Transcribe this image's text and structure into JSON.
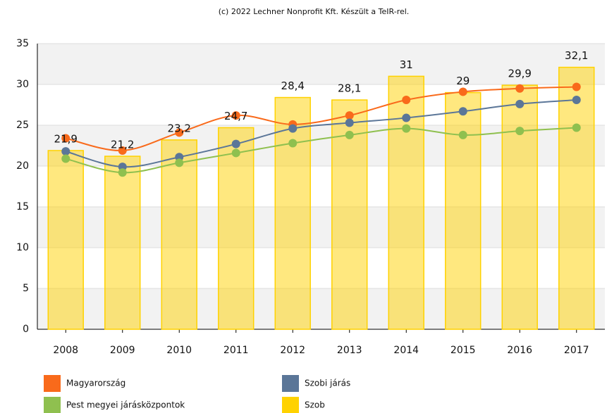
{
  "chart_data": {
    "type": "bar_line",
    "subtitle": "(c) 2022 Lechner Nonprofit Kft. Készült a TeIR-rel.",
    "categories": [
      "2008",
      "2009",
      "2010",
      "2011",
      "2012",
      "2013",
      "2014",
      "2015",
      "2016",
      "2017"
    ],
    "series": [
      {
        "name": "Magyarország",
        "type": "line",
        "color": "#f96a1b",
        "values": [
          23.4,
          21.9,
          24.1,
          26.2,
          25.1,
          26.2,
          28.1,
          29.1,
          29.5,
          29.7
        ]
      },
      {
        "name": "Szobi járás",
        "type": "line",
        "color": "#5b7698",
        "values": [
          21.8,
          19.9,
          21.1,
          22.7,
          24.6,
          25.3,
          25.9,
          26.7,
          27.6,
          28.1
        ]
      },
      {
        "name": "Pest megyei járásközpontok",
        "type": "line",
        "color": "#8fc04f",
        "values": [
          20.9,
          19.2,
          20.4,
          21.6,
          22.8,
          23.8,
          24.6,
          23.8,
          24.3,
          24.7
        ]
      },
      {
        "name": "Szob",
        "type": "bar",
        "color": "#ffd200",
        "values": [
          21.9,
          21.2,
          23.2,
          24.7,
          28.4,
          28.1,
          31,
          29,
          29.9,
          32.1
        ],
        "value_labels": [
          "21,9",
          "21,2",
          "23,2",
          "24,7",
          "28,4",
          "28,1",
          "31",
          "29",
          "29,9",
          "32,1"
        ]
      }
    ],
    "ylim": [
      0,
      35
    ],
    "yticks": [
      0,
      5,
      10,
      15,
      20,
      25,
      30,
      35
    ],
    "grid": true
  }
}
